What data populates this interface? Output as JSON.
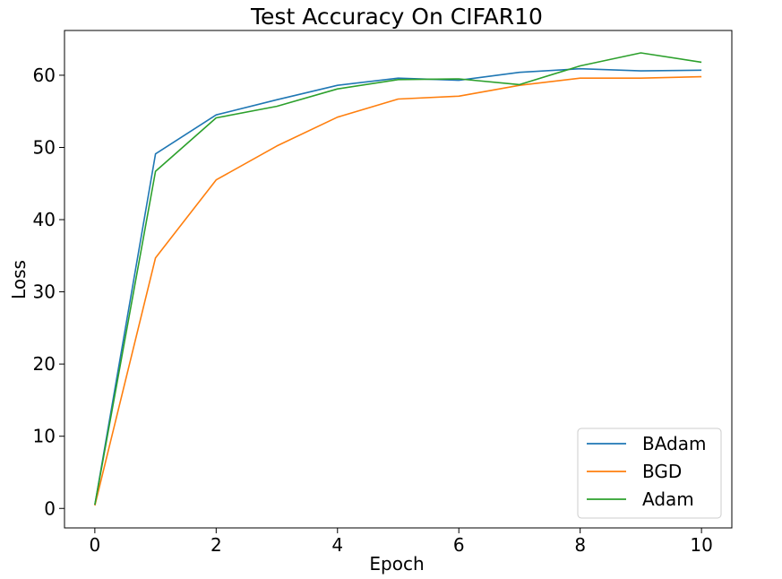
{
  "chart_data": {
    "type": "line",
    "title": "Test Accuracy On CIFAR10",
    "xlabel": "Epoch",
    "ylabel": "Loss",
    "x": [
      0,
      1,
      2,
      3,
      4,
      5,
      6,
      7,
      8,
      9,
      10
    ],
    "xlim": [
      -0.5,
      10.5
    ],
    "ylim": [
      -2.7,
      66.2
    ],
    "xticks": [
      0,
      2,
      4,
      6,
      8,
      10
    ],
    "yticks": [
      0,
      10,
      20,
      30,
      40,
      50,
      60
    ],
    "grid": false,
    "legend_position": "lower-right",
    "series": [
      {
        "name": "BAdam",
        "color": "#1f77b4",
        "values": [
          0.5,
          49.1,
          54.5,
          56.6,
          58.6,
          59.6,
          59.3,
          60.4,
          60.9,
          60.6,
          60.7
        ]
      },
      {
        "name": "BGD",
        "color": "#ff7f0e",
        "values": [
          0.4,
          34.7,
          45.5,
          50.2,
          54.2,
          56.7,
          57.1,
          58.6,
          59.6,
          59.6,
          59.8
        ]
      },
      {
        "name": "Adam",
        "color": "#2ca02c",
        "values": [
          0.5,
          46.7,
          54.1,
          55.7,
          58.1,
          59.4,
          59.5,
          58.7,
          61.3,
          63.1,
          61.8
        ]
      }
    ]
  }
}
